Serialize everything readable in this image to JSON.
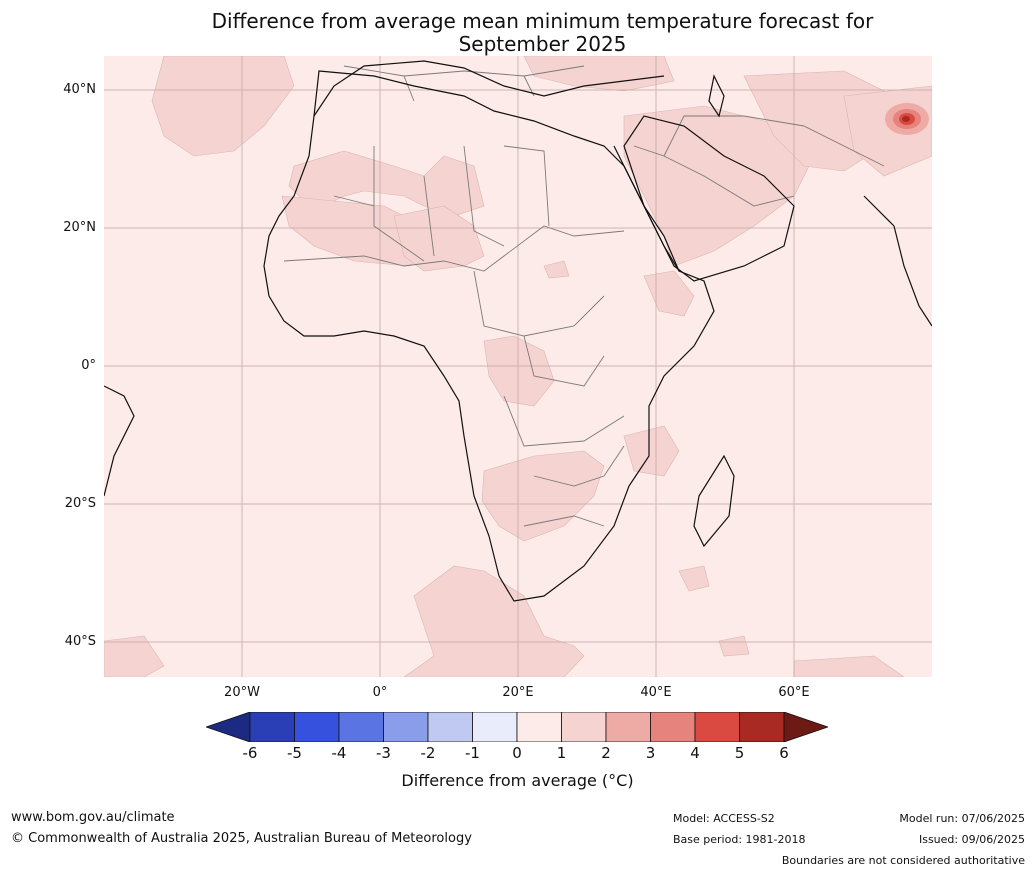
{
  "title_line1": "Difference from average mean minimum temperature forecast for",
  "title_line2": "September 2025",
  "latitude_labels": [
    "40°N",
    "20°N",
    "0°",
    "20°S",
    "40°S"
  ],
  "longitude_labels": [
    "20°W",
    "0°",
    "20°E",
    "40°E",
    "60°E"
  ],
  "colorbar": {
    "ticks": [
      "-6",
      "-5",
      "-4",
      "-3",
      "-2",
      "-1",
      "0",
      "1",
      "2",
      "3",
      "4",
      "5",
      "6"
    ],
    "colors": [
      "#1c2a82",
      "#2a3fb5",
      "#3551de",
      "#5b74e3",
      "#8a9deb",
      "#c0c9f2",
      "#e9ecfb",
      "#fcebe8",
      "#f5d3d0",
      "#eeaaa5",
      "#e6837c",
      "#db4a40",
      "#a82a22",
      "#6e1a14"
    ],
    "label": "Difference from average (°C)"
  },
  "map_colors": {
    "ocean": "#fcebe8",
    "anomaly_1_2": "#f5d3d0",
    "anomaly_2_3": "#eeaaa5",
    "anomaly_4_5": "#db4a40",
    "anomaly_5_6": "#a82a22",
    "coast": "#111111",
    "border": "#7a7a7a",
    "grid": "#c7a9a9"
  },
  "footer": {
    "website": "www.bom.gov.au/climate",
    "copyright": "© Commonwealth of Australia 2025, Australian Bureau of Meteorology",
    "model": "Model: ACCESS-S2",
    "base_period": "Base period: 1981-2018",
    "model_run": "Model run: 07/06/2025",
    "issued": "Issued: 09/06/2025",
    "disclaimer": "Boundaries are not considered authoritative"
  }
}
